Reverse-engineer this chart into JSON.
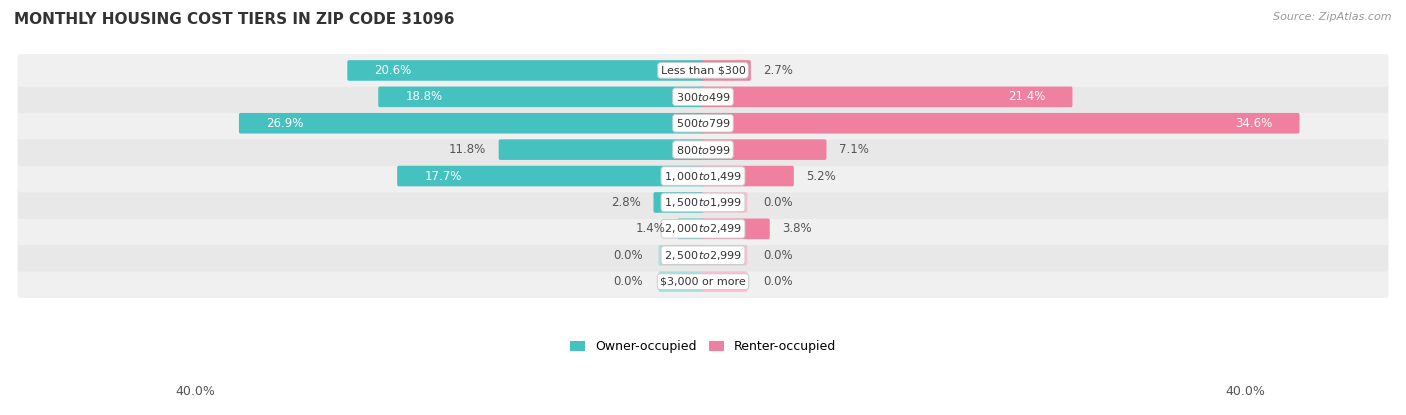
{
  "title": "MONTHLY HOUSING COST TIERS IN ZIP CODE 31096",
  "source": "Source: ZipAtlas.com",
  "categories": [
    "Less than $300",
    "$300 to $499",
    "$500 to $799",
    "$800 to $999",
    "$1,000 to $1,499",
    "$1,500 to $1,999",
    "$2,000 to $2,499",
    "$2,500 to $2,999",
    "$3,000 or more"
  ],
  "owner_values": [
    20.6,
    18.8,
    26.9,
    11.8,
    17.7,
    2.8,
    1.4,
    0.0,
    0.0
  ],
  "renter_values": [
    2.7,
    21.4,
    34.6,
    7.1,
    5.2,
    0.0,
    3.8,
    0.0,
    0.0
  ],
  "owner_color": "#45c1c0",
  "renter_color": "#f080a0",
  "owner_color_zero": "#a8dede",
  "renter_color_zero": "#f8c0d0",
  "row_bg_colors": [
    "#f0f0f0",
    "#e8e8e8",
    "#f0f0f0",
    "#e8e8e8",
    "#f0f0f0",
    "#e8e8e8",
    "#f0f0f0",
    "#e8e8e8",
    "#f0f0f0"
  ],
  "max_val": 40.0,
  "title_fontsize": 11,
  "source_fontsize": 8,
  "bar_label_fontsize": 8.5,
  "category_fontsize": 8,
  "axis_fontsize": 9,
  "legend_fontsize": 9
}
